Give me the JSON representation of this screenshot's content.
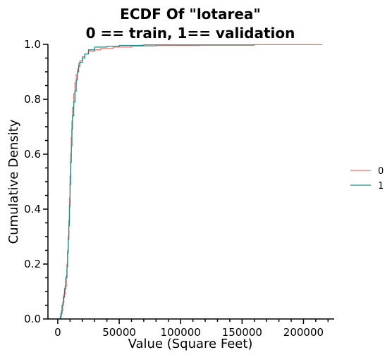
{
  "chart_data": {
    "type": "line",
    "title_lines": [
      "ECDF Of \"lotarea\"",
      "0 == train, 1== validation"
    ],
    "xlabel": "Value (Square Feet)",
    "ylabel": "Cumulative Density",
    "xlim": [
      -8000,
      225000
    ],
    "ylim": [
      0,
      1.0
    ],
    "xticks": [
      0,
      50000,
      100000,
      150000,
      200000
    ],
    "yticks": [
      0.0,
      0.2,
      0.4,
      0.6,
      0.8,
      1.0
    ],
    "xtick_labels": [
      "0",
      "50000",
      "100000",
      "150000",
      "200000"
    ],
    "ytick_labels": [
      "0.0",
      "0.2",
      "0.4",
      "0.6",
      "0.8",
      "1.0"
    ],
    "grid": false,
    "legend_position": "right",
    "series": [
      {
        "name": "0",
        "color": "#e8736f",
        "points": [
          [
            1300,
            0.0
          ],
          [
            2000,
            0.01
          ],
          [
            3000,
            0.03
          ],
          [
            4000,
            0.06
          ],
          [
            5000,
            0.09
          ],
          [
            6000,
            0.12
          ],
          [
            7000,
            0.16
          ],
          [
            7500,
            0.2
          ],
          [
            8000,
            0.25
          ],
          [
            8500,
            0.3
          ],
          [
            9000,
            0.36
          ],
          [
            9500,
            0.44
          ],
          [
            10000,
            0.52
          ],
          [
            10500,
            0.6
          ],
          [
            11000,
            0.66
          ],
          [
            11500,
            0.72
          ],
          [
            12000,
            0.77
          ],
          [
            13000,
            0.82
          ],
          [
            14000,
            0.86
          ],
          [
            15000,
            0.89
          ],
          [
            16000,
            0.91
          ],
          [
            17000,
            0.93
          ],
          [
            18000,
            0.94
          ],
          [
            20000,
            0.955
          ],
          [
            22000,
            0.965
          ],
          [
            25000,
            0.975
          ],
          [
            30000,
            0.98
          ],
          [
            35000,
            0.985
          ],
          [
            45000,
            0.99
          ],
          [
            60000,
            0.994
          ],
          [
            80000,
            0.996
          ],
          [
            115000,
            0.997
          ],
          [
            160000,
            0.999
          ],
          [
            215000,
            1.0
          ]
        ]
      },
      {
        "name": "1",
        "color": "#1a8c87",
        "points": [
          [
            1500,
            0.0
          ],
          [
            2500,
            0.02
          ],
          [
            3500,
            0.05
          ],
          [
            4500,
            0.08
          ],
          [
            5500,
            0.11
          ],
          [
            6500,
            0.15
          ],
          [
            7500,
            0.19
          ],
          [
            8000,
            0.24
          ],
          [
            8500,
            0.29
          ],
          [
            9000,
            0.34
          ],
          [
            9500,
            0.41
          ],
          [
            10000,
            0.49
          ],
          [
            10500,
            0.57
          ],
          [
            11000,
            0.63
          ],
          [
            11500,
            0.69
          ],
          [
            12000,
            0.74
          ],
          [
            13000,
            0.79
          ],
          [
            14000,
            0.83
          ],
          [
            15000,
            0.87
          ],
          [
            16000,
            0.9
          ],
          [
            17000,
            0.92
          ],
          [
            18000,
            0.935
          ],
          [
            20000,
            0.95
          ],
          [
            22000,
            0.965
          ],
          [
            25000,
            0.98
          ],
          [
            30000,
            0.99
          ],
          [
            40000,
            0.993
          ],
          [
            50000,
            0.996
          ],
          [
            70000,
            0.998
          ],
          [
            160000,
            1.0
          ]
        ]
      }
    ]
  }
}
